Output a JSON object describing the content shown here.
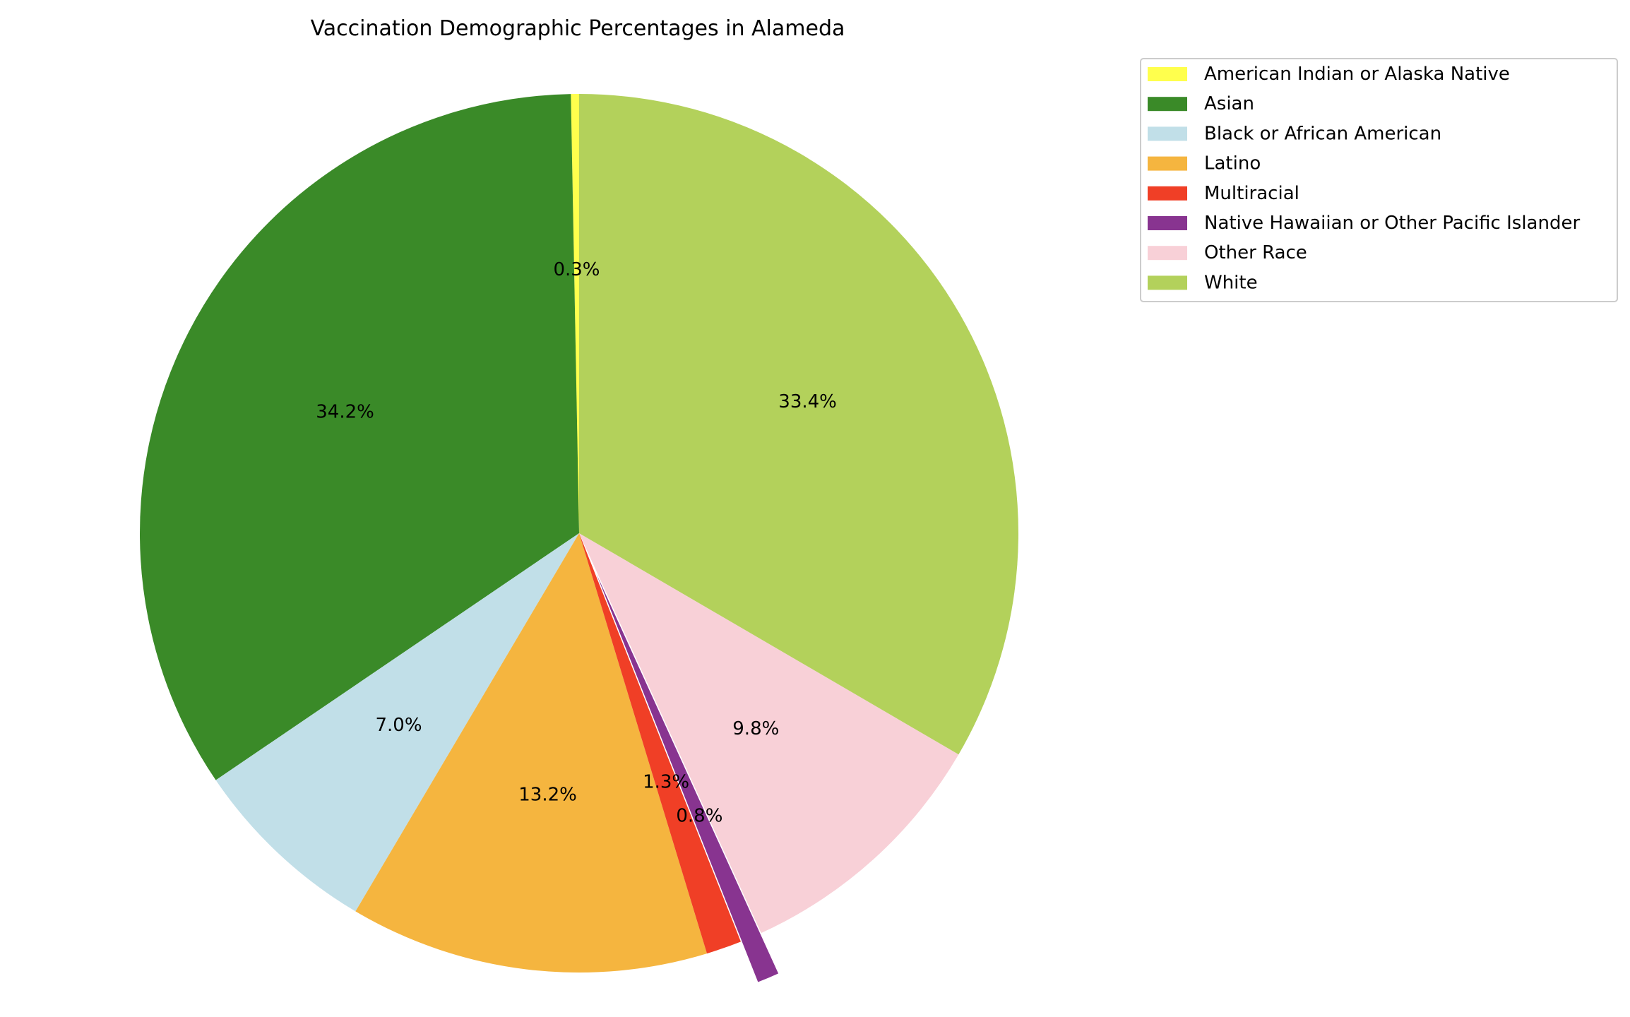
{
  "chart_data": {
    "type": "pie",
    "title": "Vaccination Demographic Percentages in Alameda",
    "start_angle_deg": 90,
    "direction": "counterclockwise",
    "legend_position": "top-right, outside plot",
    "slices": [
      {
        "label": "American Indian or Alaska Native",
        "value": 0.3,
        "value_label": "0.3%",
        "color": "#ffff4d",
        "exploded": false
      },
      {
        "label": "Asian",
        "value": 34.2,
        "value_label": "34.2%",
        "color": "#3a8a28",
        "exploded": false
      },
      {
        "label": "Black or African American",
        "value": 7.0,
        "value_label": "7.0%",
        "color": "#c1dfe8",
        "exploded": false
      },
      {
        "label": "Latino",
        "value": 13.2,
        "value_label": "13.2%",
        "color": "#f5b53f",
        "exploded": false
      },
      {
        "label": "Multiracial",
        "value": 1.3,
        "value_label": "1.3%",
        "color": "#f03f26",
        "exploded": false
      },
      {
        "label": "Native Hawaiian or Other Pacific Islander",
        "value": 0.8,
        "value_label": "0.8%",
        "color": "#883490",
        "exploded": true
      },
      {
        "label": "Other Race",
        "value": 9.8,
        "value_label": "9.8%",
        "color": "#f8d0d7",
        "exploded": false
      },
      {
        "label": "White",
        "value": 33.4,
        "value_label": "33.4%",
        "color": "#b3d15b",
        "exploded": false
      }
    ]
  }
}
